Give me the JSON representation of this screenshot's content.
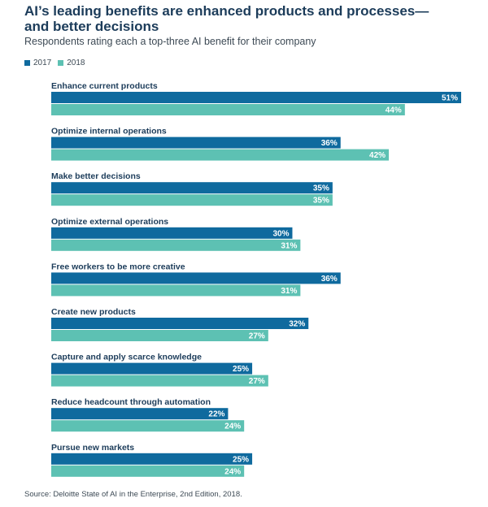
{
  "header": {
    "title_line1": "AI’s leading benefits are enhanced products and processes—",
    "title_line2": "and better decisions",
    "subtitle": "Respondents rating each a top-three AI benefit for their company"
  },
  "legend": {
    "items": [
      {
        "label": "2017",
        "color": "#0f6a9e"
      },
      {
        "label": "2018",
        "color": "#5dc1b3"
      }
    ]
  },
  "footer": {
    "source": "Source: Deloitte State of AI in the Enterprise, 2nd Edition, 2018."
  },
  "chart_data": {
    "type": "bar",
    "orientation": "horizontal",
    "categories": [
      "Enhance current products",
      "Optimize internal operations",
      "Make better decisions",
      "Optimize external operations",
      "Free workers to be more creative",
      "Create new products",
      "Capture and apply scarce knowledge",
      "Reduce headcount through automation",
      "Pursue new markets"
    ],
    "series": [
      {
        "name": "2017",
        "color": "#0f6a9e",
        "values": [
          51,
          36,
          35,
          30,
          36,
          32,
          25,
          22,
          25
        ]
      },
      {
        "name": "2018",
        "color": "#5dc1b3",
        "values": [
          44,
          42,
          35,
          31,
          31,
          27,
          27,
          24,
          24
        ]
      }
    ],
    "value_suffix": "%",
    "xlim": [
      0,
      51
    ],
    "grid": false,
    "legend_position": "top-left"
  }
}
